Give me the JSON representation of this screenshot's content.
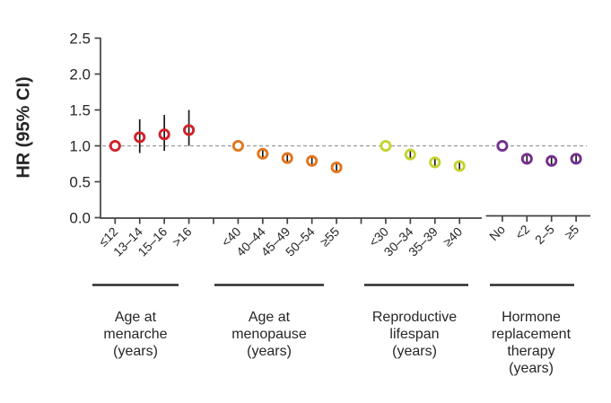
{
  "chart_data": {
    "type": "scatter",
    "subtype": "forest-plot",
    "title": "",
    "ylabel": "HR (95% CI)",
    "yticks": [
      "0.0",
      "0.5",
      "1.0",
      "1.5",
      "2.0",
      "2.5"
    ],
    "ylim": [
      0,
      2.5
    ],
    "reference_line_y": 1.0,
    "grid": false,
    "legend": "none",
    "colors": {
      "error_bar": "#1a1a1a",
      "reference_line": "#999999",
      "axis": "#434343",
      "text": "#262626",
      "background": "#ffffff"
    },
    "groups": [
      {
        "name": "age-at-menarche",
        "title_lines": [
          "Age at",
          "menarche",
          "(years)"
        ],
        "color": "#d0212a",
        "points": [
          {
            "label": "≤12",
            "hr": 1.0,
            "lo": null,
            "hi": null,
            "reference": true
          },
          {
            "label": "13–14",
            "hr": 1.12,
            "lo": 0.9,
            "hi": 1.37,
            "reference": false
          },
          {
            "label": "15–16",
            "hr": 1.16,
            "lo": 0.93,
            "hi": 1.43,
            "reference": false
          },
          {
            "label": ">16",
            "hr": 1.22,
            "lo": 1.0,
            "hi": 1.5,
            "reference": false
          }
        ]
      },
      {
        "name": "age-at-menopause",
        "title_lines": [
          "Age at",
          "menopause",
          "(years)"
        ],
        "color": "#e2761e",
        "points": [
          {
            "label": "<40",
            "hr": 1.0,
            "lo": null,
            "hi": null,
            "reference": true
          },
          {
            "label": "40–44",
            "hr": 0.89,
            "lo": 0.83,
            "hi": 0.95,
            "reference": false
          },
          {
            "label": "45–49",
            "hr": 0.83,
            "lo": 0.78,
            "hi": 0.88,
            "reference": false
          },
          {
            "label": "50–54",
            "hr": 0.79,
            "lo": 0.74,
            "hi": 0.84,
            "reference": false
          },
          {
            "label": "≥55",
            "hr": 0.7,
            "lo": 0.65,
            "hi": 0.75,
            "reference": false
          }
        ]
      },
      {
        "name": "reproductive-lifespan",
        "title_lines": [
          "Reproductive",
          "lifespan",
          "(years)"
        ],
        "color": "#c4d32f",
        "points": [
          {
            "label": "<30",
            "hr": 1.0,
            "lo": null,
            "hi": null,
            "reference": true
          },
          {
            "label": "30–34",
            "hr": 0.88,
            "lo": 0.83,
            "hi": 0.93,
            "reference": false
          },
          {
            "label": "35–39",
            "hr": 0.77,
            "lo": 0.72,
            "hi": 0.82,
            "reference": false
          },
          {
            "label": "≥40",
            "hr": 0.72,
            "lo": 0.67,
            "hi": 0.77,
            "reference": false
          }
        ]
      },
      {
        "name": "hormone-replacement-therapy",
        "title_lines": [
          "Hormone",
          "replacement",
          "therapy",
          "(years)"
        ],
        "color": "#752f8d",
        "points": [
          {
            "label": "No",
            "hr": 1.0,
            "lo": null,
            "hi": null,
            "reference": true
          },
          {
            "label": "<2",
            "hr": 0.82,
            "lo": 0.77,
            "hi": 0.87,
            "reference": false
          },
          {
            "label": "2–5",
            "hr": 0.79,
            "lo": 0.74,
            "hi": 0.84,
            "reference": false
          },
          {
            "label": "≥5",
            "hr": 0.82,
            "lo": 0.77,
            "hi": 0.87,
            "reference": false
          }
        ]
      }
    ]
  }
}
